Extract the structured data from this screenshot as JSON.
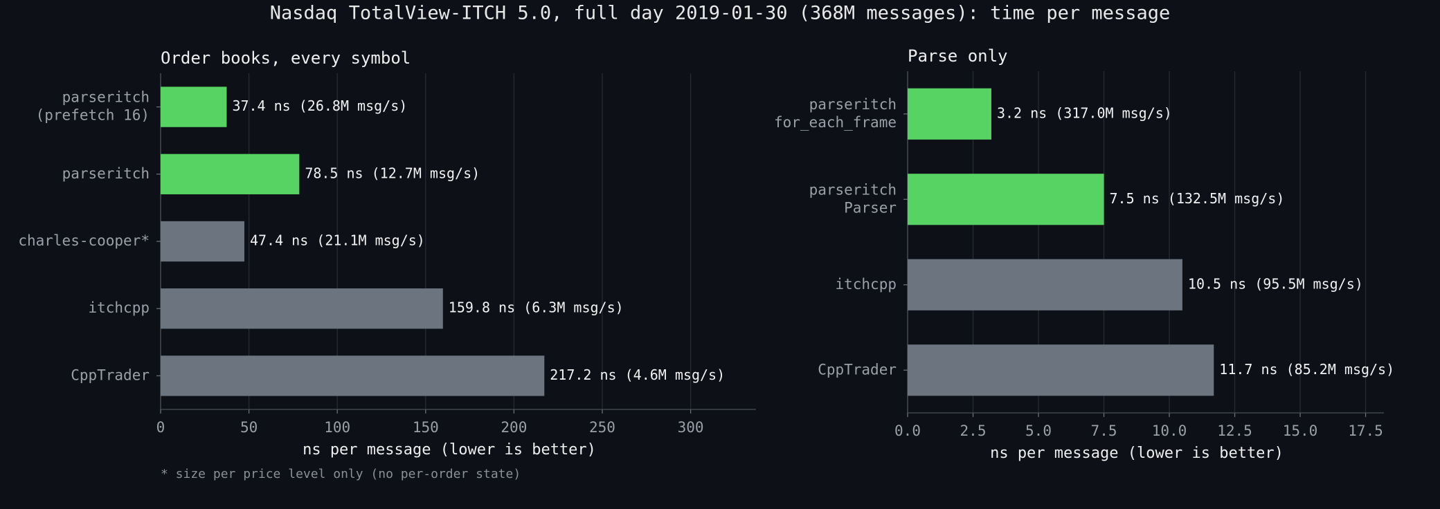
{
  "title": "Nasdaq TotalView-ITCH 5.0, full day 2019-01-30 (368M messages): time per message",
  "chart_data": [
    {
      "type": "barh",
      "title": "Order books, every symbol",
      "categories": [
        "parseritch\n(prefetch 16)",
        "parseritch",
        "charles-cooper*",
        "itchcpp",
        "CppTrader"
      ],
      "values": [
        37.4,
        78.5,
        47.4,
        159.8,
        217.2
      ],
      "value_labels": [
        "37.4 ns  (26.8M msg/s)",
        "78.5 ns  (12.7M msg/s)",
        "47.4 ns  (21.1M msg/s)",
        "159.8 ns  (6.3M msg/s)",
        "217.2 ns  (4.6M msg/s)"
      ],
      "colors": [
        "#57d364",
        "#57d364",
        "#6c7480",
        "#6c7480",
        "#6c7480"
      ],
      "xlabel": "ns per message (lower is better)",
      "xlim": [
        0,
        337
      ],
      "xticks": [
        0,
        50,
        100,
        150,
        200,
        250,
        300
      ],
      "grid": true,
      "note": "* size per price level only (no per-order state)"
    },
    {
      "type": "barh",
      "title": "Parse only",
      "categories": [
        "parseritch\nfor_each_frame",
        "parseritch\nParser",
        "itchcpp",
        "CppTrader"
      ],
      "values": [
        3.2,
        7.5,
        10.5,
        11.7
      ],
      "value_labels": [
        "3.2 ns  (317.0M msg/s)",
        "7.5 ns  (132.5M msg/s)",
        "10.5 ns  (95.5M msg/s)",
        "11.7 ns  (85.2M msg/s)"
      ],
      "colors": [
        "#57d364",
        "#57d364",
        "#6c7480",
        "#6c7480"
      ],
      "xlabel": "ns per message (lower is better)",
      "xlim": [
        0,
        18.2
      ],
      "xticks": [
        {
          "value": 0,
          "label": "0.0"
        },
        {
          "value": 2.5,
          "label": "2.5"
        },
        {
          "value": 5,
          "label": "5.0"
        },
        {
          "value": 7.5,
          "label": "7.5"
        },
        {
          "value": 10,
          "label": "10.0"
        },
        {
          "value": 12.5,
          "label": "12.5"
        },
        {
          "value": 15,
          "label": "15.0"
        },
        {
          "value": 17.5,
          "label": "17.5"
        }
      ],
      "grid": true
    }
  ]
}
